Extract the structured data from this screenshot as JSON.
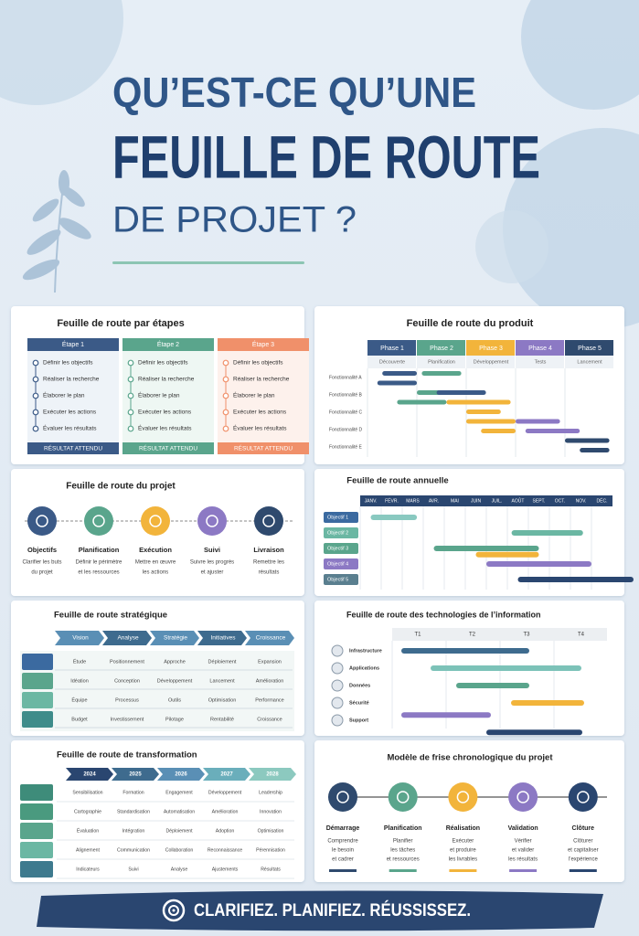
{
  "header": {
    "line1": "QU’EST-CE QU’UNE",
    "line2": "FEUILLE DE ROUTE",
    "line3": "DE PROJET ?"
  },
  "panels": [
    {
      "title": "Feuille de route par étapes",
      "columns": [
        {
          "name": "Étape 1",
          "items": [
            "Définir les objectifs",
            "Réaliser la recherche",
            "Élaborer le plan",
            "Exécuter les actions",
            "Évaluer les résultats"
          ],
          "result": "RÉSULTAT ATTENDU"
        },
        {
          "name": "Étape 2",
          "items": [
            "Définir les objectifs",
            "Réaliser la recherche",
            "Élaborer le plan",
            "Exécuter les actions",
            "Évaluer les résultats"
          ],
          "result": "RÉSULTAT ATTENDU"
        },
        {
          "name": "Étape 3",
          "items": [
            "Définir les objectifs",
            "Réaliser la recherche",
            "Élaborer le plan",
            "Exécuter les actions",
            "Évaluer les résultats"
          ],
          "result": "RÉSULTAT ATTENDU"
        }
      ]
    },
    {
      "title": "Feuille de route du produit",
      "phases": [
        {
          "name": "Phase 1",
          "sub": "Découverte"
        },
        {
          "name": "Phase 2",
          "sub": "Planification"
        },
        {
          "name": "Phase 3",
          "sub": "Développement"
        },
        {
          "name": "Phase 4",
          "sub": "Tests"
        },
        {
          "name": "Phase 5",
          "sub": "Lancement"
        }
      ],
      "features": [
        "Fonctionnalité A",
        "Fonctionnalité B",
        "Fonctionnalité C",
        "Fonctionnalité D",
        "Fonctionnalité E"
      ]
    },
    {
      "title": "Feuille de route du projet",
      "steps": [
        {
          "name": "Objectifs",
          "desc": [
            "Clarifier les buts",
            "du projet"
          ]
        },
        {
          "name": "Planification",
          "desc": [
            "Définir le périmètre",
            "et les ressources"
          ]
        },
        {
          "name": "Exécution",
          "desc": [
            "Mettre en œuvre",
            "les actions"
          ]
        },
        {
          "name": "Suivi",
          "desc": [
            "Suivre les progrès",
            "et ajuster"
          ]
        },
        {
          "name": "Livraison",
          "desc": [
            "Remettre les",
            "résultats"
          ]
        }
      ]
    },
    {
      "title": "Feuille de route annuelle",
      "months": [
        "JANV.",
        "FÉVR.",
        "MARS",
        "AVR.",
        "MAI",
        "JUIN",
        "JUIL.",
        "AOÛT",
        "SEPT.",
        "OCT.",
        "NOV.",
        "DÉC."
      ],
      "objectives": [
        "Objectif 1",
        "Objectif 2",
        "Objectif 3",
        "Objectif 4",
        "Objectif 5"
      ]
    },
    {
      "title": "Feuille de route stratégique",
      "stages": [
        "Vision",
        "Analyse",
        "Stratégie",
        "Initiatives",
        "Croissance"
      ],
      "rows": [
        [
          "Étude",
          "Positionnement",
          "Approche",
          "Déploiement",
          "Expansion"
        ],
        [
          "Idéation",
          "Conception",
          "Développement",
          "Lancement",
          "Amélioration"
        ],
        [
          "Équipe",
          "Processus",
          "Outils",
          "Optimisation",
          "Performance"
        ],
        [
          "Budget",
          "Investissement",
          "Pilotage",
          "Rentabilité",
          "Croissance"
        ]
      ]
    },
    {
      "title": "Feuille de route des technologies de l’information",
      "quarters": [
        "T1",
        "T2",
        "T3",
        "T4"
      ],
      "rows": [
        "Infrastructure",
        "Applications",
        "Données",
        "Sécurité",
        "Support"
      ]
    },
    {
      "title": "Feuille de route de transformation",
      "years": [
        "2024",
        "2025",
        "2026",
        "2027",
        "2028"
      ],
      "rows": [
        [
          "Sensibilisation",
          "Formation",
          "Engagement",
          "Développement",
          "Leadership"
        ],
        [
          "Cartographie",
          "Standardisation",
          "Automatisation",
          "Amélioration",
          "Innovation"
        ],
        [
          "Évaluation",
          "Intégration",
          "Déploiement",
          "Adoption",
          "Optimisation"
        ],
        [
          "Alignement",
          "Communication",
          "Collaboration",
          "Reconnaissance",
          "Pérennisation"
        ],
        [
          "Indicateurs",
          "Suivi",
          "Analyse",
          "Ajustements",
          "Résultats"
        ]
      ]
    },
    {
      "title": "Modèle de frise chronologique du projet",
      "steps": [
        {
          "name": "Démarrage",
          "desc": [
            "Comprendre",
            "le besoin",
            "et cadrer"
          ]
        },
        {
          "name": "Planification",
          "desc": [
            "Planifier",
            "les tâches",
            "et ressources"
          ]
        },
        {
          "name": "Réalisation",
          "desc": [
            "Exécuter",
            "et produire",
            "les livrables"
          ]
        },
        {
          "name": "Validation",
          "desc": [
            "Vérifier",
            "et valider",
            "les résultats"
          ]
        },
        {
          "name": "Clôture",
          "desc": [
            "Clôturer",
            "et capitaliser",
            "l’expérience"
          ]
        }
      ]
    }
  ],
  "footer": {
    "slogan": "CLARIFIEZ. PLANIFIEZ. RÉUSSISSEZ."
  }
}
